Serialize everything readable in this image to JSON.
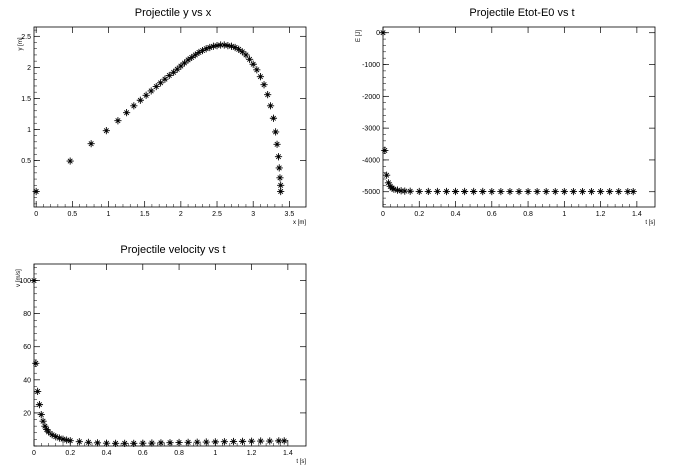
{
  "colors": {
    "background": "#ffffff",
    "marker": "#000000",
    "frame": "#000000"
  },
  "marker": "asterisk",
  "chart_data": [
    {
      "type": "scatter",
      "title": "Projectile y vs x",
      "xlabel": "x [m]",
      "ylabel": "y [m]",
      "xlim": [
        -0.03,
        3.73
      ],
      "ylim": [
        -0.25,
        2.65
      ],
      "xticks": [
        0,
        0.5,
        1,
        1.5,
        2,
        2.5,
        3,
        3.5
      ],
      "xtick_labels": [
        "0",
        "0.5",
        "1",
        "1.5",
        "2",
        "2.5",
        "3",
        "3.5"
      ],
      "yticks": [
        0.5,
        1,
        1.5,
        2,
        2.5
      ],
      "ytick_labels": [
        "0.5",
        "1",
        "1.5",
        "2",
        "2.5"
      ],
      "grid": false,
      "series": [
        {
          "x": [
            0,
            0.47,
            0.76,
            0.97,
            1.13,
            1.25,
            1.35,
            1.44,
            1.52,
            1.59,
            1.66,
            1.72,
            1.78,
            1.84,
            1.9,
            1.95,
            2.0,
            2.05,
            2.1,
            2.15,
            2.2,
            2.25,
            2.3,
            2.35,
            2.4,
            2.45,
            2.5,
            2.55,
            2.6,
            2.65,
            2.7,
            2.75,
            2.8,
            2.85,
            2.9,
            2.95,
            3.0,
            3.05,
            3.1,
            3.15,
            3.2,
            3.24,
            3.28,
            3.31,
            3.33,
            3.35,
            3.36,
            3.37,
            3.38,
            3.38
          ],
          "y": [
            0,
            0.49,
            0.77,
            0.98,
            1.14,
            1.27,
            1.38,
            1.47,
            1.55,
            1.62,
            1.69,
            1.75,
            1.81,
            1.87,
            1.92,
            1.97,
            2.02,
            2.07,
            2.12,
            2.16,
            2.2,
            2.24,
            2.27,
            2.3,
            2.32,
            2.34,
            2.35,
            2.36,
            2.36,
            2.35,
            2.34,
            2.32,
            2.29,
            2.25,
            2.2,
            2.13,
            2.05,
            1.96,
            1.85,
            1.72,
            1.56,
            1.38,
            1.18,
            0.96,
            0.76,
            0.56,
            0.38,
            0.22,
            0.1,
            0.0
          ]
        }
      ]
    },
    {
      "type": "scatter",
      "title": "Projectile Etot-E0 vs t",
      "xlabel": "t [s]",
      "ylabel": "E [J]",
      "xlim": [
        0,
        1.5
      ],
      "ylim": [
        -5480,
        180
      ],
      "xticks": [
        0,
        0.2,
        0.4,
        0.6,
        0.8,
        1,
        1.2,
        1.4
      ],
      "xtick_labels": [
        "0",
        "0.2",
        "0.4",
        "0.6",
        "0.8",
        "1",
        "1.2",
        "1.4"
      ],
      "yticks": [
        0,
        -1000,
        -2000,
        -3000,
        -4000,
        -5000
      ],
      "ytick_labels": [
        "0",
        "-1000",
        "-2000",
        "-3000",
        "-4000",
        "-5000"
      ],
      "grid": false,
      "series": [
        {
          "x": [
            0,
            0.01,
            0.02,
            0.03,
            0.04,
            0.05,
            0.06,
            0.08,
            0.1,
            0.12,
            0.15,
            0.2,
            0.25,
            0.3,
            0.35,
            0.4,
            0.45,
            0.5,
            0.55,
            0.6,
            0.65,
            0.7,
            0.75,
            0.8,
            0.85,
            0.9,
            0.95,
            1.0,
            1.05,
            1.1,
            1.15,
            1.2,
            1.25,
            1.3,
            1.35,
            1.38
          ],
          "y": [
            0,
            -3700,
            -4480,
            -4720,
            -4830,
            -4890,
            -4920,
            -4950,
            -4970,
            -4980,
            -4985,
            -4990,
            -4990,
            -4992,
            -4992,
            -4993,
            -4993,
            -4993,
            -4993,
            -4994,
            -4994,
            -4994,
            -4994,
            -4994,
            -4994,
            -4994,
            -4994,
            -4994,
            -4994,
            -4994,
            -4994,
            -4994,
            -4994,
            -4994,
            -4994,
            -4994
          ]
        }
      ]
    },
    {
      "type": "scatter",
      "title": "Projectile velocity vs t",
      "xlabel": "t [s]",
      "ylabel": "v [m/s]",
      "xlim": [
        0,
        1.5
      ],
      "ylim": [
        0,
        110
      ],
      "xticks": [
        0,
        0.2,
        0.4,
        0.6,
        0.8,
        1,
        1.2,
        1.4
      ],
      "xtick_labels": [
        "0",
        "0.2",
        "0.4",
        "0.6",
        "0.8",
        "1",
        "1.2",
        "1.4"
      ],
      "yticks": [
        20,
        40,
        60,
        80,
        100
      ],
      "ytick_labels": [
        "20",
        "40",
        "60",
        "80",
        "100"
      ],
      "grid": false,
      "series": [
        {
          "x": [
            0,
            0.01,
            0.02,
            0.03,
            0.04,
            0.05,
            0.06,
            0.07,
            0.08,
            0.1,
            0.12,
            0.14,
            0.16,
            0.18,
            0.2,
            0.25,
            0.3,
            0.35,
            0.4,
            0.45,
            0.5,
            0.55,
            0.6,
            0.65,
            0.7,
            0.75,
            0.8,
            0.85,
            0.9,
            0.95,
            1.0,
            1.05,
            1.1,
            1.15,
            1.2,
            1.25,
            1.3,
            1.35,
            1.38
          ],
          "y": [
            100,
            50,
            33,
            25,
            19,
            15,
            12,
            10,
            8.5,
            6.8,
            5.6,
            4.8,
            4.1,
            3.6,
            3.2,
            2.6,
            2.2,
            1.9,
            1.7,
            1.6,
            1.6,
            1.6,
            1.7,
            1.8,
            1.9,
            2.0,
            2.1,
            2.2,
            2.3,
            2.4,
            2.5,
            2.6,
            2.7,
            2.8,
            2.9,
            3.0,
            3.0,
            3.1,
            3.1
          ]
        }
      ]
    }
  ]
}
